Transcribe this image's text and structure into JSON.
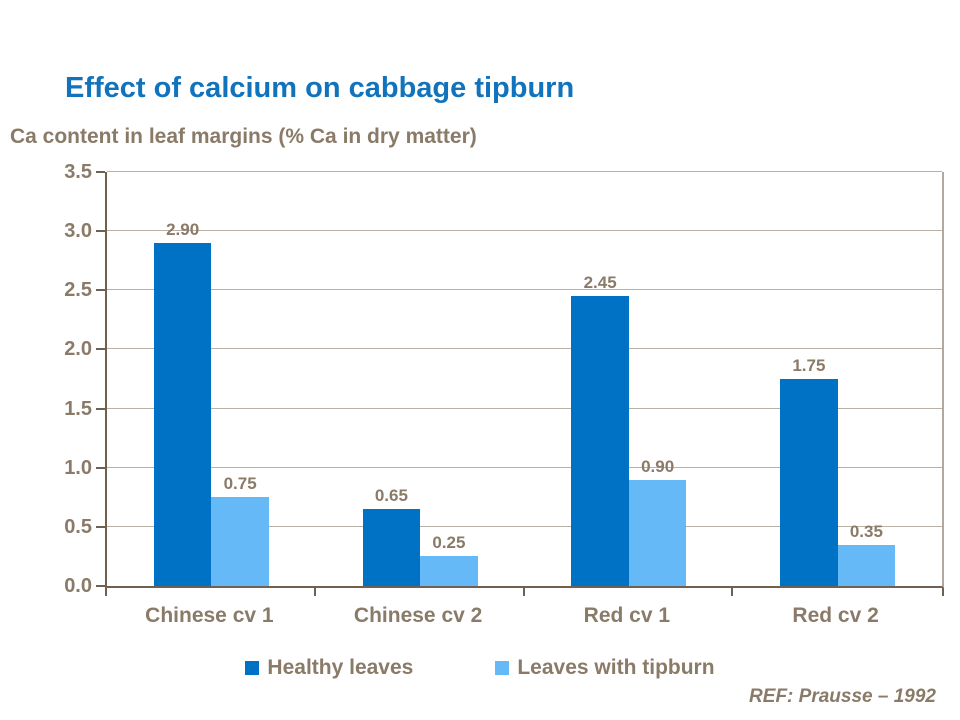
{
  "page": {
    "title": "Effect of calcium on cabbage tipburn",
    "subtitle": "Ca content in leaf margins (% Ca in dry matter)",
    "reference": "REF: Prausse – 1992"
  },
  "colors": {
    "title_text": "#1273BD",
    "body_text": "#8A7A68",
    "axis_line": "#6E6152",
    "gridline": "#B9B0A6",
    "plot_right_border": "#B2A89D",
    "healthy_series": "#0072C6",
    "tipburn_series": "#66B9F7"
  },
  "chart_data": {
    "type": "bar",
    "title": "Ca content in leaf margins (% Ca in dry matter)",
    "categories": [
      "Chinese cv 1",
      "Chinese cv 2",
      "Red cv 1",
      "Red cv 2"
    ],
    "series": [
      {
        "name": "Healthy leaves",
        "color": "#0072C6",
        "values": [
          2.9,
          0.65,
          2.45,
          1.75
        ],
        "labels": [
          "2.90",
          "0.65",
          "2.45",
          "1.75"
        ]
      },
      {
        "name": "Leaves with tipburn",
        "color": "#66B9F7",
        "values": [
          0.75,
          0.25,
          0.9,
          0.35
        ],
        "labels": [
          "0.75",
          "0.25",
          "0.90",
          "0.35"
        ]
      }
    ],
    "xlabel": "",
    "ylabel": "",
    "ylim": [
      0,
      3.5
    ],
    "ytick_step": 0.5,
    "ytick_labels": [
      "0.0",
      "0.5",
      "1.0",
      "1.5",
      "2.0",
      "2.5",
      "3.0",
      "3.5"
    ],
    "grid": true,
    "legend_position": "bottom",
    "annotation": "REF: Prausse – 1992"
  }
}
